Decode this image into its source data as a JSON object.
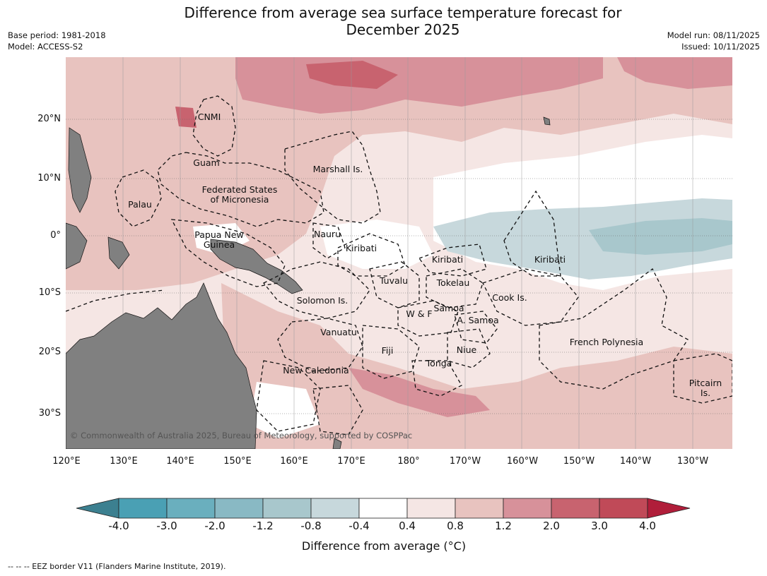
{
  "title_line1": "Difference from average sea surface temperature forecast for",
  "title_line2": "December 2025",
  "base_period": "Base period: 1981-2018",
  "model": "Model: ACCESS-S2",
  "model_run": "Model run: 08/11/2025",
  "issued": "Issued: 10/11/2025",
  "copyright": "© Commonwealth of Australia 2025, Bureau of Meteorology, supported by COSPPac",
  "lat_labels": [
    "20°N",
    "10°N",
    "0°",
    "10°S",
    "20°S",
    "30°S"
  ],
  "lon_labels": [
    "120°E",
    "130°E",
    "140°E",
    "150°E",
    "160°E",
    "170°E",
    "180°",
    "170°W",
    "160°W",
    "150°W",
    "140°W",
    "130°W"
  ],
  "region_labels": {
    "cnmi": "CNMI",
    "guam": "Guam",
    "palau": "Palau",
    "fsm_1": "Federated States",
    "fsm_2": "of Micronesia",
    "marshall": "Marshall Is.",
    "png_1": "Papua New",
    "png_2": "Guinea",
    "nauru": "Nauru",
    "kiribati_w": "Kiribati",
    "kiribati_c": "Kiribati",
    "kiribati_e": "Kiribati",
    "tuvalu": "Tuvalu",
    "tokelau": "Tokelau",
    "cook": "Cook Is.",
    "solomon": "Solomon Is.",
    "samoa": "Samoa",
    "wf": "W & F",
    "asamoa": "A. Samoa",
    "vanuatu": "Vanuatu",
    "fiji": "Fiji",
    "niue": "Niue",
    "tonga": "Tonga",
    "frpoly": "French Polynesia",
    "newcal": "New Caledonia",
    "pitcairn_1": "Pitcairn",
    "pitcairn_2": "Is."
  },
  "colorbar": {
    "labels": [
      "-4.0",
      "-3.0",
      "-2.0",
      "-1.2",
      "-0.8",
      "-0.4",
      "0.4",
      "0.8",
      "1.2",
      "2.0",
      "3.0",
      "4.0"
    ],
    "colors": [
      "#4aa0b4",
      "#6aafbe",
      "#89b9c4",
      "#a8c7cc",
      "#c7d8dc",
      "#ffffff",
      "#f5e6e4",
      "#e8c3bf",
      "#d7919a",
      "#c8636f",
      "#c04a58"
    ],
    "under_color": "#3c8090",
    "over_color": "#b01e3a",
    "title": "Difference from average (°C)"
  },
  "colors": {
    "land": "#808080",
    "ocean_default": "#f5e6e4"
  },
  "footer": "--  --  -- EEZ border V11 (Flanders Marine Institute, 2019)."
}
